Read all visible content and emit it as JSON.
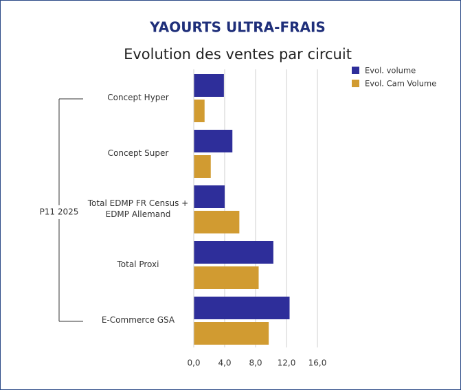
{
  "chart_data": {
    "type": "bar",
    "orientation": "horizontal",
    "title": "YAOURTS ULTRA-FRAIS",
    "subtitle": "Evolution des ventes par circuit",
    "group": "P11 2025",
    "categories": [
      "Concept Hyper",
      "Concept Super",
      "Total EDMP FR Census + EDMP Allemand",
      "Total Proxi",
      "E-Commerce GSA"
    ],
    "series": [
      {
        "name": "Evol. volume",
        "color": "#2e2e9a",
        "values": [
          3.9,
          5.0,
          4.0,
          10.3,
          12.4
        ]
      },
      {
        "name": "Evol. Cam Volume",
        "color": "#d19b31",
        "values": [
          1.4,
          2.2,
          5.9,
          8.4,
          9.7
        ]
      }
    ],
    "xlim": [
      0,
      16
    ],
    "xticks": [
      {
        "value": 0,
        "label": "0,0"
      },
      {
        "value": 4,
        "label": "4,0"
      },
      {
        "value": 8,
        "label": "8,0"
      },
      {
        "value": 12,
        "label": "12,0"
      },
      {
        "value": 16,
        "label": "16,0"
      }
    ],
    "grid": true,
    "legend": "top-right"
  }
}
